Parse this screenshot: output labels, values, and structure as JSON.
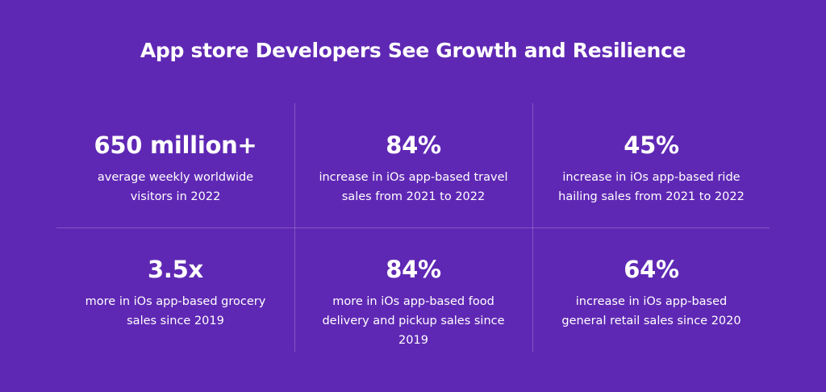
{
  "title": "App store Developers See Growth and Resilience",
  "stats": [
    {
      "value": "650 million+",
      "description": "average weekly worldwide visitors in 2022"
    },
    {
      "value": "84%",
      "description": "increase in iOs app-based travel sales from 2021 to 2022"
    },
    {
      "value": "45%",
      "description": "increase in iOs app-based ride hailing sales from 2021 to 2022"
    },
    {
      "value": "3.5x",
      "description": "more in iOs app-based grocery sales since 2019"
    },
    {
      "value": "84%",
      "description": "more in iOs app-based food delivery and pickup sales since 2019"
    },
    {
      "value": "64%",
      "description": "increase in iOs app-based general retail sales since 2020"
    }
  ],
  "colors": {
    "background": "#5f28b4",
    "text": "#ffffff"
  }
}
